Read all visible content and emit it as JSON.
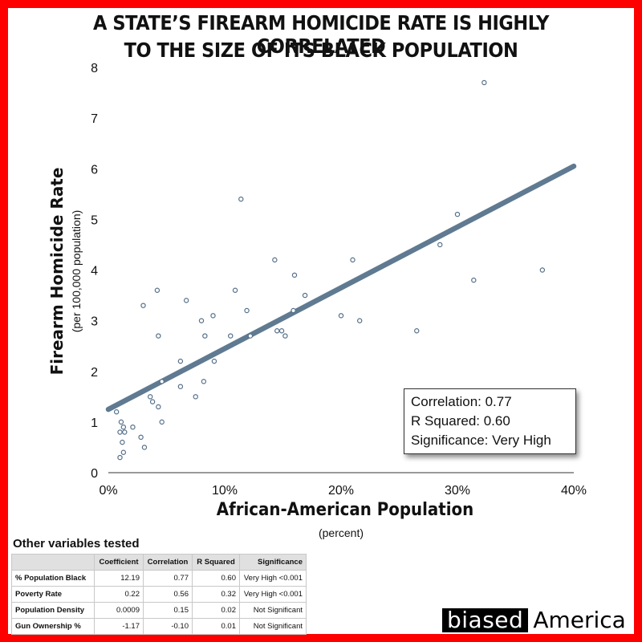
{
  "title": {
    "line1": "A STATE’S FIREARM HOMICIDE RATE IS HIGHLY CORRELATED",
    "line2": "TO THE SIZE OF ITS BLACK POPULATION"
  },
  "colors": {
    "border": "#ff0000",
    "marker": "#567089",
    "trendline": "#5f7a91"
  },
  "chart_data": {
    "type": "scatter",
    "title": "A STATE’S FIREARM HOMICIDE RATE IS HIGHLY CORRELATED TO THE SIZE OF ITS BLACK POPULATION",
    "xlabel": "African-American Population",
    "xlabel_sub": "(percent)",
    "ylabel": "Firearm Homicide Rate",
    "ylabel_sub": "(per 100,000 population)",
    "xlim": [
      0,
      40
    ],
    "ylim": [
      0,
      8
    ],
    "x_ticks": [
      "0%",
      "10%",
      "20%",
      "30%",
      "40%"
    ],
    "y_ticks": [
      "0",
      "1",
      "2",
      "3",
      "4",
      "5",
      "6",
      "7",
      "8"
    ],
    "grid": false,
    "points": [
      {
        "x": 0.7,
        "y": 1.2
      },
      {
        "x": 1.0,
        "y": 0.8
      },
      {
        "x": 1.1,
        "y": 1.0
      },
      {
        "x": 1.2,
        "y": 0.6
      },
      {
        "x": 1.3,
        "y": 0.9
      },
      {
        "x": 1.4,
        "y": 0.8
      },
      {
        "x": 1.3,
        "y": 0.4
      },
      {
        "x": 1.0,
        "y": 0.3
      },
      {
        "x": 2.1,
        "y": 0.9
      },
      {
        "x": 2.8,
        "y": 0.7
      },
      {
        "x": 3.0,
        "y": 3.3
      },
      {
        "x": 3.1,
        "y": 0.5
      },
      {
        "x": 3.6,
        "y": 1.5
      },
      {
        "x": 3.8,
        "y": 1.4
      },
      {
        "x": 4.2,
        "y": 3.6
      },
      {
        "x": 4.3,
        "y": 2.7
      },
      {
        "x": 4.3,
        "y": 1.3
      },
      {
        "x": 4.6,
        "y": 1.8
      },
      {
        "x": 4.6,
        "y": 1.0
      },
      {
        "x": 6.2,
        "y": 2.2
      },
      {
        "x": 6.2,
        "y": 1.7
      },
      {
        "x": 6.7,
        "y": 3.4
      },
      {
        "x": 7.5,
        "y": 1.5
      },
      {
        "x": 8.0,
        "y": 3.0
      },
      {
        "x": 8.2,
        "y": 1.8
      },
      {
        "x": 8.3,
        "y": 2.7
      },
      {
        "x": 9.0,
        "y": 3.1
      },
      {
        "x": 9.1,
        "y": 2.2
      },
      {
        "x": 10.5,
        "y": 2.7
      },
      {
        "x": 10.9,
        "y": 3.6
      },
      {
        "x": 11.4,
        "y": 5.4
      },
      {
        "x": 11.9,
        "y": 3.2
      },
      {
        "x": 12.2,
        "y": 2.7
      },
      {
        "x": 14.3,
        "y": 4.2
      },
      {
        "x": 14.5,
        "y": 2.8
      },
      {
        "x": 14.9,
        "y": 2.8
      },
      {
        "x": 15.2,
        "y": 2.7
      },
      {
        "x": 15.9,
        "y": 3.2
      },
      {
        "x": 16.0,
        "y": 3.9
      },
      {
        "x": 16.9,
        "y": 3.5
      },
      {
        "x": 20.0,
        "y": 3.1
      },
      {
        "x": 21.0,
        "y": 4.2
      },
      {
        "x": 21.6,
        "y": 3.0
      },
      {
        "x": 26.5,
        "y": 2.8
      },
      {
        "x": 28.5,
        "y": 4.5
      },
      {
        "x": 30.0,
        "y": 5.1
      },
      {
        "x": 31.4,
        "y": 3.8
      },
      {
        "x": 32.3,
        "y": 7.7
      },
      {
        "x": 37.3,
        "y": 4.0
      }
    ],
    "trendline": {
      "x": [
        0,
        40
      ],
      "y": [
        1.25,
        6.05
      ]
    },
    "stats": {
      "correlation": "Correlation: 0.77",
      "r_squared": "R Squared: 0.60",
      "significance": "Significance: Very High"
    }
  },
  "table": {
    "title": "Other variables tested",
    "headers": [
      "",
      "Coefficient",
      "Correlation",
      "R Squared",
      "Significance"
    ],
    "rows": [
      [
        "% Population Black",
        "12.19",
        "0.77",
        "0.60",
        "Very High <0.001"
      ],
      [
        "Poverty Rate",
        "0.22",
        "0.56",
        "0.32",
        "Very High <0.001"
      ],
      [
        "Population Density",
        "0.0009",
        "0.15",
        "0.02",
        "Not Significant"
      ],
      [
        "Gun Ownership %",
        "-1.17",
        "-0.10",
        "0.01",
        "Not Significant"
      ]
    ]
  },
  "logo": {
    "part1": "biased",
    "part2": "America"
  }
}
